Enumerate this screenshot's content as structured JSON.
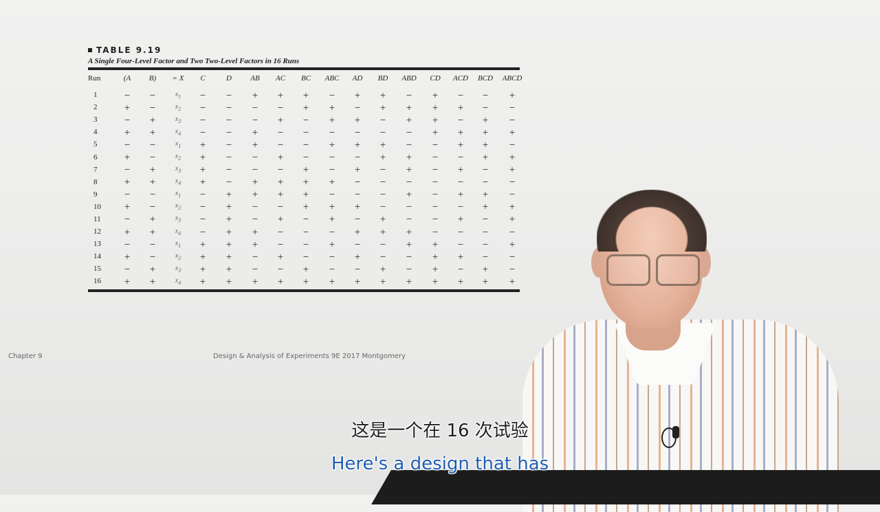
{
  "table": {
    "label": "TABLE 9.19",
    "caption": "A Single Four-Level Factor and Two Two-Level Factors in 16 Runs",
    "headers": [
      "Run",
      "(A",
      "B)",
      "= X",
      "C",
      "D",
      "AB",
      "AC",
      "BC",
      "ABC",
      "AD",
      "BD",
      "ABD",
      "CD",
      "ACD",
      "BCD",
      "ABCD"
    ],
    "rows": [
      [
        "1",
        "−",
        "−",
        "x1",
        "−",
        "−",
        "+",
        "+",
        "+",
        "−",
        "+",
        "+",
        "−",
        "+",
        "−",
        "−",
        "+"
      ],
      [
        "2",
        "+",
        "−",
        "x2",
        "−",
        "−",
        "−",
        "−",
        "+",
        "+",
        "−",
        "+",
        "+",
        "+",
        "+",
        "−",
        "−"
      ],
      [
        "3",
        "−",
        "+",
        "x3",
        "−",
        "−",
        "−",
        "+",
        "−",
        "+",
        "+",
        "−",
        "+",
        "+",
        "−",
        "+",
        "−"
      ],
      [
        "4",
        "+",
        "+",
        "x4",
        "−",
        "−",
        "+",
        "−",
        "−",
        "−",
        "−",
        "−",
        "−",
        "+",
        "+",
        "+",
        "+"
      ],
      [
        "5",
        "−",
        "−",
        "x1",
        "+",
        "−",
        "+",
        "−",
        "−",
        "+",
        "+",
        "+",
        "−",
        "−",
        "+",
        "+",
        "−"
      ],
      [
        "6",
        "+",
        "−",
        "x2",
        "+",
        "−",
        "−",
        "+",
        "−",
        "−",
        "−",
        "+",
        "+",
        "−",
        "−",
        "+",
        "+"
      ],
      [
        "7",
        "−",
        "+",
        "x3",
        "+",
        "−",
        "−",
        "−",
        "+",
        "−",
        "+",
        "−",
        "+",
        "−",
        "+",
        "−",
        "+"
      ],
      [
        "8",
        "+",
        "+",
        "x4",
        "+",
        "−",
        "+",
        "+",
        "+",
        "+",
        "−",
        "−",
        "−",
        "−",
        "−",
        "−",
        "−"
      ],
      [
        "9",
        "−",
        "−",
        "x1",
        "−",
        "+",
        "+",
        "+",
        "+",
        "−",
        "−",
        "−",
        "+",
        "−",
        "+",
        "+",
        "−"
      ],
      [
        "10",
        "+",
        "−",
        "x2",
        "−",
        "+",
        "−",
        "−",
        "+",
        "+",
        "+",
        "−",
        "−",
        "−",
        "−",
        "+",
        "+"
      ],
      [
        "11",
        "−",
        "+",
        "x3",
        "−",
        "+",
        "−",
        "+",
        "−",
        "+",
        "−",
        "+",
        "−",
        "−",
        "+",
        "−",
        "+"
      ],
      [
        "12",
        "+",
        "+",
        "x4",
        "−",
        "+",
        "+",
        "−",
        "−",
        "−",
        "+",
        "+",
        "+",
        "−",
        "−",
        "−",
        "−"
      ],
      [
        "13",
        "−",
        "−",
        "x1",
        "+",
        "+",
        "+",
        "−",
        "−",
        "+",
        "−",
        "−",
        "+",
        "+",
        "−",
        "−",
        "+"
      ],
      [
        "14",
        "+",
        "−",
        "x2",
        "+",
        "+",
        "−",
        "+",
        "−",
        "−",
        "+",
        "−",
        "−",
        "+",
        "+",
        "−",
        "−"
      ],
      [
        "15",
        "−",
        "+",
        "x3",
        "+",
        "+",
        "−",
        "−",
        "+",
        "−",
        "−",
        "+",
        "−",
        "+",
        "−",
        "+",
        "−"
      ],
      [
        "16",
        "+",
        "+",
        "x4",
        "+",
        "+",
        "+",
        "+",
        "+",
        "+",
        "+",
        "+",
        "+",
        "+",
        "+",
        "+",
        "+"
      ]
    ]
  },
  "footer": {
    "chapter": "Chapter 9",
    "source": "Design & Analysis of Experiments 9E 2017 Montgomery"
  },
  "subtitles": {
    "chinese": "这是一个在 16 次试验",
    "english": "Here's a design that has"
  }
}
